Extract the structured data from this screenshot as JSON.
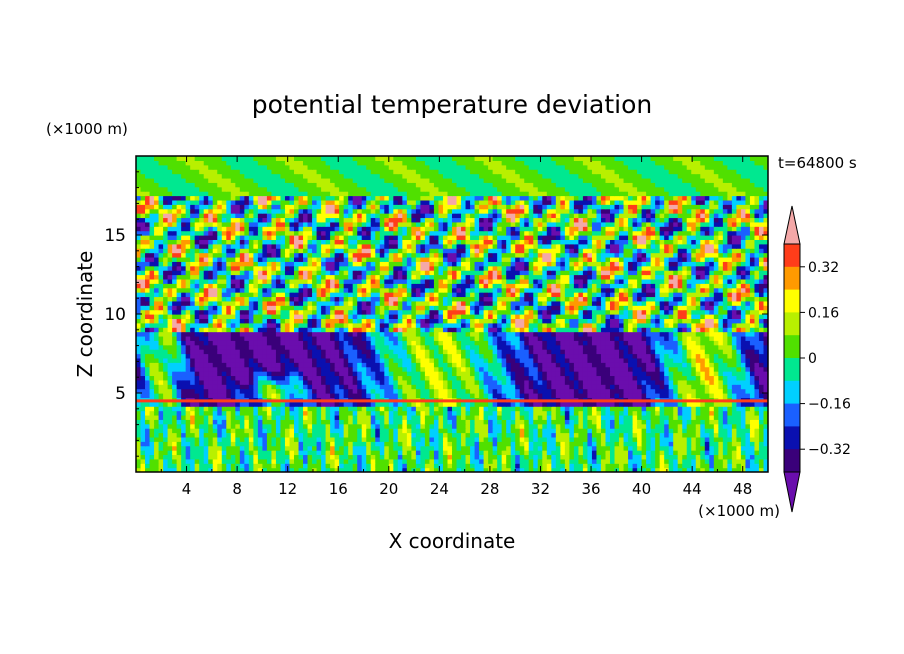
{
  "chart_data": {
    "type": "heatmap",
    "title": "potential temperature deviation",
    "xlabel": "X coordinate",
    "ylabel": "Z coordinate",
    "x_unit": "(×1000 m)",
    "y_unit": "(×1000 m)",
    "time_label": "t=64800 s",
    "xlim": [
      0,
      50
    ],
    "ylim": [
      0,
      20
    ],
    "x_ticks": [
      4,
      8,
      12,
      16,
      20,
      24,
      28,
      32,
      36,
      40,
      44,
      48
    ],
    "y_ticks": [
      5,
      10,
      15
    ],
    "colorbar": {
      "levels": [
        -0.4,
        -0.32,
        -0.24,
        -0.16,
        -0.08,
        0,
        0.08,
        0.16,
        0.24,
        0.32,
        0.4
      ],
      "tick_labels": [
        "0.32",
        "0.16",
        "0",
        "−0.16",
        "−0.32"
      ],
      "tick_values": [
        0.32,
        0.16,
        0,
        -0.16,
        -0.32
      ],
      "colors": [
        "#6a0dad",
        "#3a007a",
        "#0a10b0",
        "#1a60ff",
        "#00d0ff",
        "#00e890",
        "#50e000",
        "#b8f000",
        "#ffff00",
        "#ff9a00",
        "#ff3d1a",
        "#f4a8a8"
      ],
      "extend": "both"
    }
  }
}
